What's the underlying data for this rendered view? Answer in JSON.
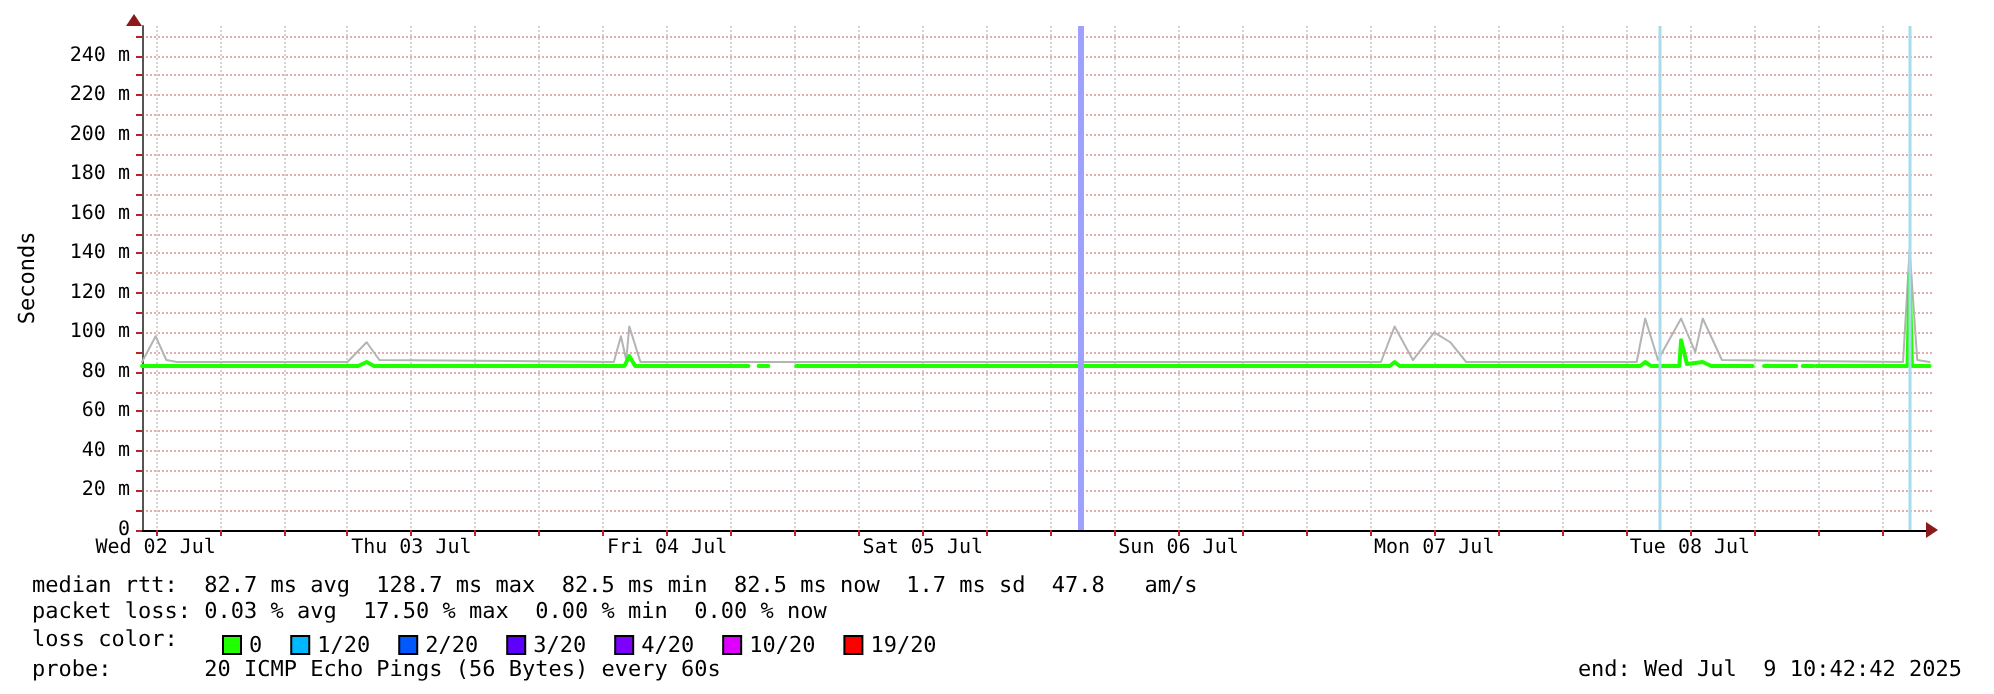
{
  "chart_data": {
    "type": "line",
    "ylabel": "Seconds",
    "legend_title": "loss color:",
    "legend": "bottom left",
    "grid": true,
    "marker": "none",
    "line_style": "solid",
    "xlim": [
      "2025-07-02T10:43",
      "2025-07-09T10:43"
    ],
    "xticks": [
      {
        "value": "2025-07-02T12:00",
        "label": "Wed 02 Jul"
      },
      {
        "value": "2025-07-02T18:00",
        "label": null
      },
      {
        "value": "2025-07-03T00:00",
        "label": null
      },
      {
        "value": "2025-07-03T06:00",
        "label": null
      },
      {
        "value": "2025-07-03T12:00",
        "label": "Thu 03 Jul"
      },
      {
        "value": "2025-07-03T18:00",
        "label": null
      },
      {
        "value": "2025-07-04T00:00",
        "label": null
      },
      {
        "value": "2025-07-04T06:00",
        "label": null
      },
      {
        "value": "2025-07-04T12:00",
        "label": "Fri 04 Jul"
      },
      {
        "value": "2025-07-04T18:00",
        "label": null
      },
      {
        "value": "2025-07-05T00:00",
        "label": null
      },
      {
        "value": "2025-07-05T06:00",
        "label": null
      },
      {
        "value": "2025-07-05T12:00",
        "label": "Sat 05 Jul"
      },
      {
        "value": "2025-07-05T18:00",
        "label": null
      },
      {
        "value": "2025-07-06T00:00",
        "label": null
      },
      {
        "value": "2025-07-06T06:00",
        "label": null
      },
      {
        "value": "2025-07-06T12:00",
        "label": "Sun 06 Jul"
      },
      {
        "value": "2025-07-06T18:00",
        "label": null
      },
      {
        "value": "2025-07-07T00:00",
        "label": null
      },
      {
        "value": "2025-07-07T06:00",
        "label": null
      },
      {
        "value": "2025-07-07T12:00",
        "label": "Mon 07 Jul"
      },
      {
        "value": "2025-07-07T18:00",
        "label": null
      },
      {
        "value": "2025-07-08T00:00",
        "label": null
      },
      {
        "value": "2025-07-08T06:00",
        "label": null
      },
      {
        "value": "2025-07-08T12:00",
        "label": "Tue 08 Jul"
      },
      {
        "value": "2025-07-08T18:00",
        "label": null
      },
      {
        "value": "2025-07-09T00:00",
        "label": null
      },
      {
        "value": "2025-07-09T06:00",
        "label": null
      }
    ],
    "ylim": [
      0,
      255
    ],
    "yticks": [
      0,
      {
        "value": 10,
        "label": null
      },
      {
        "value": 20,
        "label": "20 m"
      },
      {
        "value": 30,
        "label": null
      },
      {
        "value": 40,
        "label": "40 m"
      },
      {
        "value": 50,
        "label": null
      },
      {
        "value": 60,
        "label": "60 m"
      },
      {
        "value": 70,
        "label": null
      },
      {
        "value": 80,
        "label": "80 m"
      },
      {
        "value": 90,
        "label": null
      },
      {
        "value": 100,
        "label": "100 m"
      },
      {
        "value": 110,
        "label": null
      },
      {
        "value": 120,
        "label": "120 m"
      },
      {
        "value": 130,
        "label": null
      },
      {
        "value": 140,
        "label": "140 m"
      },
      {
        "value": 150,
        "label": null
      },
      {
        "value": 160,
        "label": "160 m"
      },
      {
        "value": 170,
        "label": null
      },
      {
        "value": 180,
        "label": "180 m"
      },
      {
        "value": 190,
        "label": null
      },
      {
        "value": 200,
        "label": "200 m"
      },
      {
        "value": 210,
        "label": null
      },
      {
        "value": 220,
        "label": "220 m"
      },
      {
        "value": 230,
        "label": null
      },
      {
        "value": 240,
        "label": "240 m"
      },
      {
        "value": 250,
        "label": null
      }
    ],
    "series": [
      {
        "color": "#b4b4b4",
        "x": [
          "2025-07-02T10:43",
          "2025-07-02T12:00",
          "2025-07-02T13:00",
          "2025-07-02T14:00",
          "2025-07-03T06:00",
          "2025-07-03T07:48",
          "2025-07-03T09:00",
          "2025-07-04T07:00",
          "2025-07-04T07:40",
          "2025-07-04T08:10",
          "2025-07-04T08:27",
          "2025-07-04T09:30",
          "2025-07-04T19:38",
          "2025-07-07T07:00",
          "2025-07-07T08:17",
          "2025-07-07T10:00",
          "2025-07-07T12:00",
          "2025-07-07T13:30",
          "2025-07-07T15:00",
          "2025-07-08T07:00",
          "2025-07-08T07:48",
          "2025-07-08T09:00",
          "2025-07-08T11:10",
          "2025-07-08T12:30",
          "2025-07-08T13:12",
          "2025-07-08T15:00",
          "2025-07-09T08:00",
          "2025-07-09T08:37",
          "2025-07-09T09:20",
          "2025-07-09T10:29"
        ],
        "values": [
          85,
          98,
          86,
          85,
          85,
          95,
          86,
          85,
          98,
          86,
          103,
          85,
          85,
          85,
          103,
          86,
          100,
          95,
          85,
          85,
          107,
          86,
          107,
          90,
          107,
          86,
          85,
          142,
          86,
          85
        ]
      },
      {
        "name": "0",
        "color": "#20ff00",
        "x": [
          "2025-07-02T10:43",
          "2025-07-03T07:00",
          "2025-07-03T07:48",
          "2025-07-03T08:30",
          "2025-07-04T08:00",
          "2025-07-04T08:27",
          "2025-07-04T09:00",
          "2025-07-04T19:38",
          "2025-07-04T20:00",
          "2025-07-04T20:35",
          "2025-07-04T21:30",
          "2025-07-04T22:30",
          "2025-07-05T00:07",
          "2025-07-07T07:50",
          "2025-07-07T08:17",
          "2025-07-07T08:45",
          "2025-07-08T07:20",
          "2025-07-08T07:48",
          "2025-07-08T08:20",
          "2025-07-08T11:00",
          "2025-07-08T11:10",
          "2025-07-08T11:43",
          "2025-07-08T13:12",
          "2025-07-08T14:00",
          "2025-07-08T17:53",
          "2025-07-08T18:20",
          "2025-07-08T18:57",
          "2025-07-08T21:59",
          "2025-07-08T22:30",
          "2025-07-08T22:35",
          "2025-07-08T23:35",
          "2025-07-08T23:42",
          "2025-07-08T23:50",
          "2025-07-09T08:25",
          "2025-07-09T08:37",
          "2025-07-09T08:50",
          "2025-07-09T10:29"
        ],
        "values": [
          83,
          83,
          85,
          83,
          83,
          88,
          83,
          83,
          null,
          83,
          83,
          null,
          83,
          83,
          85,
          83,
          83,
          85,
          83,
          83,
          96,
          84,
          85,
          83,
          83,
          null,
          83,
          83,
          null,
          83,
          83,
          null,
          83,
          83,
          129,
          83,
          83
        ]
      },
      {
        "name": "1/20",
        "color": "#00b8ff"
      },
      {
        "name": "2/20",
        "color": "#0059ff"
      },
      {
        "name": "3/20",
        "color": "#5e00ff"
      },
      {
        "name": "4/20",
        "color": "#7e00ff"
      },
      {
        "name": "10/20",
        "color": "#dd00ff"
      },
      {
        "name": "19/20",
        "color": "#ff0000"
      }
    ],
    "ref_lines": [
      {
        "axis": "x",
        "value": "2025-07-06T02:45",
        "label": null,
        "color": "#a0a0ff"
      },
      {
        "axis": "x",
        "value": "2025-07-08T09:10",
        "label": null,
        "color": "#a8dcec"
      },
      {
        "axis": "x",
        "value": "2025-07-09T08:41",
        "label": null,
        "color": "#a8dcec"
      }
    ],
    "annotations": [
      "median rtt:  82.7 ms avg  128.7 ms max  82.5 ms min  82.5 ms now  1.7 ms sd  47.8   am/s",
      "packet loss: 0.03 % avg  17.50 % max  0.00 % min  0.00 % now",
      "probe:       20 ICMP Echo Pings (56 Bytes) every 60s",
      "end: Wed Jul  9 10:42:42 2025"
    ]
  }
}
